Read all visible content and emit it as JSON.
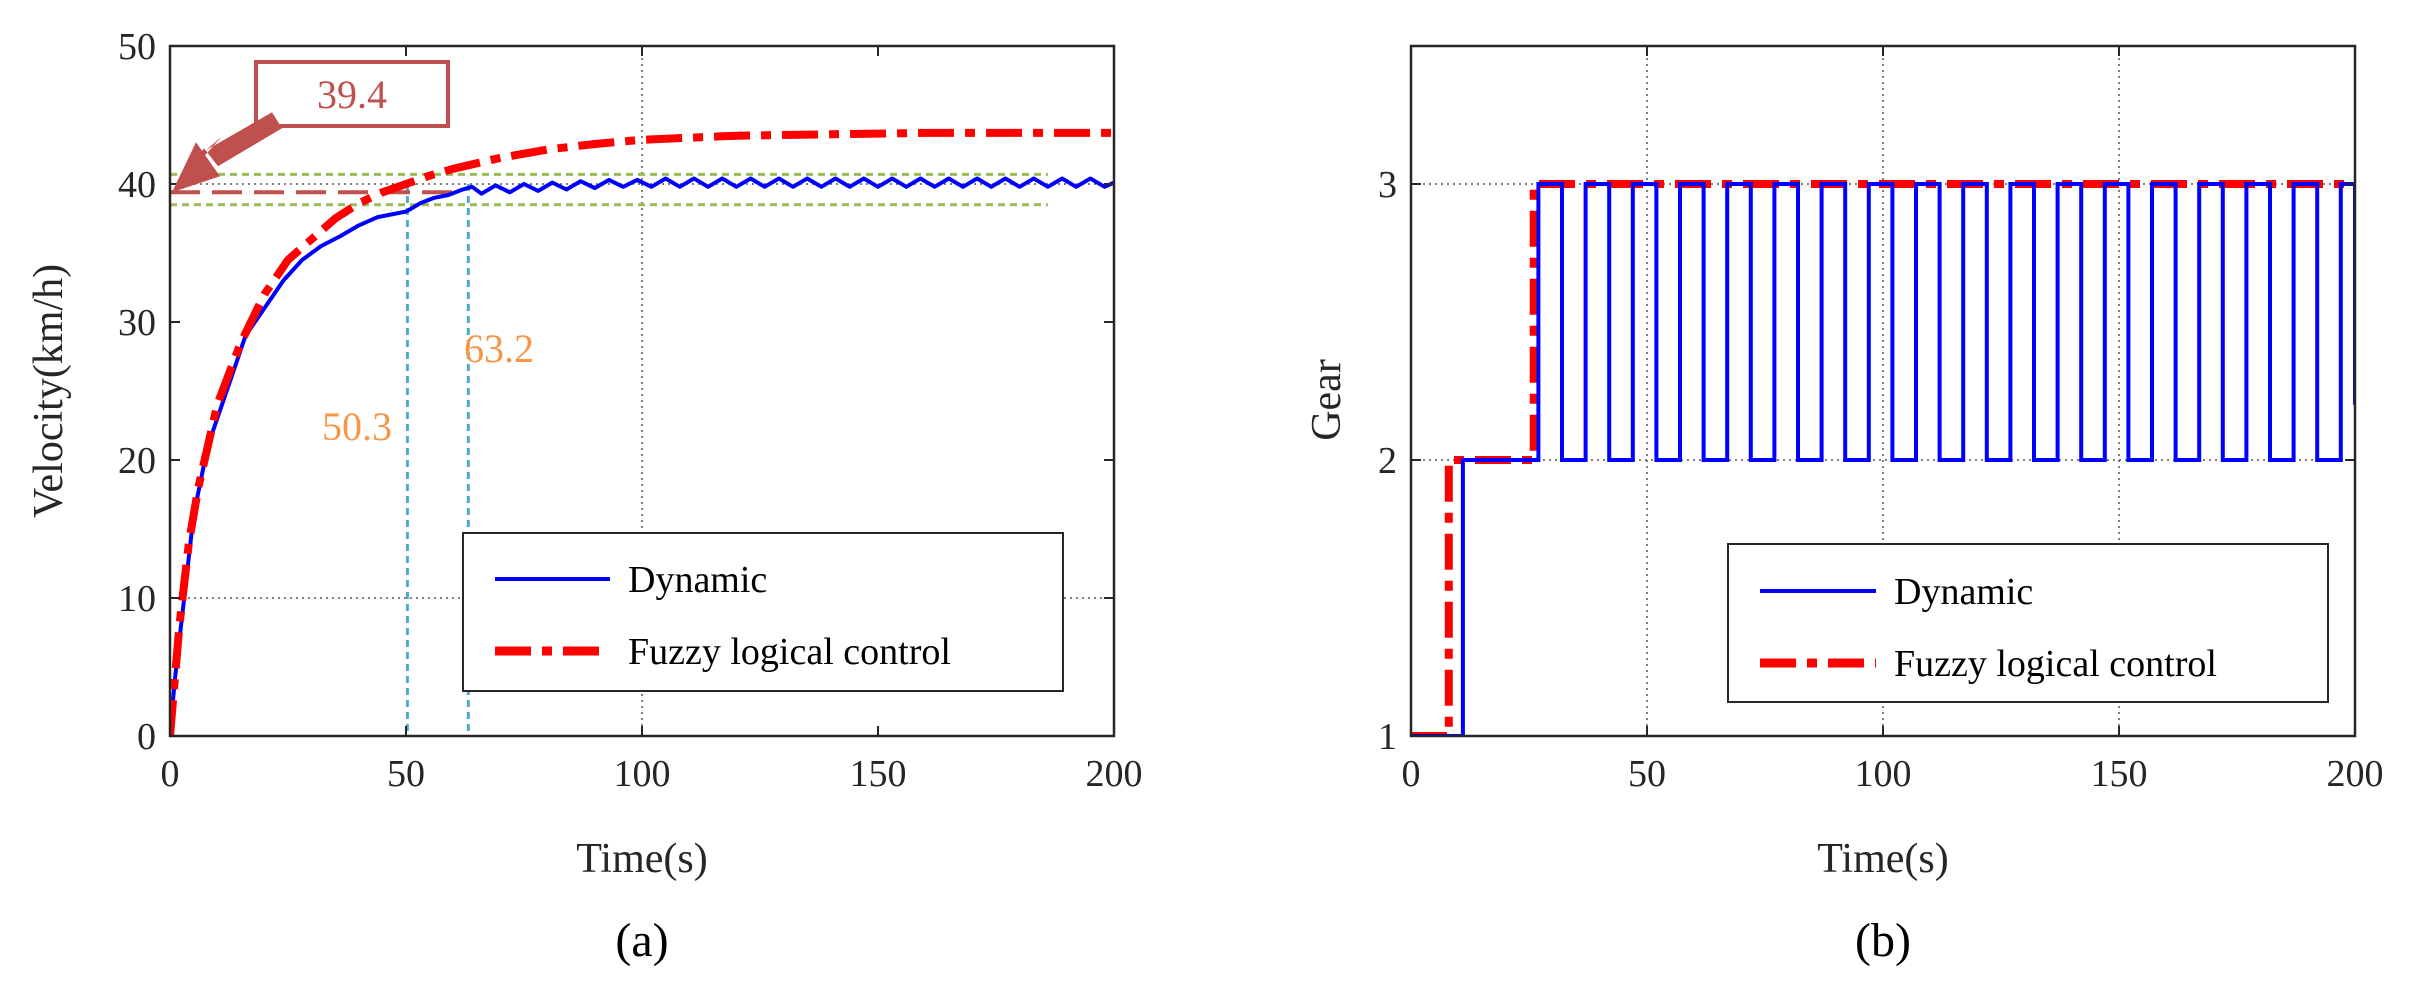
{
  "chart_data": [
    {
      "type": "line",
      "panel_label": "(a)",
      "xlabel": "Time(s)",
      "ylabel": "Velocity(km/h)",
      "xlim": [
        0,
        200
      ],
      "ylim": [
        0,
        50
      ],
      "xticks": [
        "0",
        "50",
        "100",
        "150",
        "200"
      ],
      "yticks": [
        "0",
        "10",
        "20",
        "30",
        "40",
        "50"
      ],
      "grid": "dotted, selected lines",
      "legend_position": "lower-right",
      "series": [
        {
          "name": "Dynamic",
          "color": "#0000ff",
          "style": "solid",
          "points": [
            [
              0,
              0
            ],
            [
              1,
              4
            ],
            [
              3,
              10
            ],
            [
              5,
              16
            ],
            [
              8,
              21
            ],
            [
              10,
              23
            ],
            [
              13,
              26
            ],
            [
              16,
              29
            ],
            [
              20,
              31
            ],
            [
              24,
              33
            ],
            [
              28,
              34.5
            ],
            [
              32,
              35.5
            ],
            [
              36,
              36.2
            ],
            [
              40,
              37
            ],
            [
              44,
              37.6
            ],
            [
              47,
              37.8
            ],
            [
              50,
              38
            ],
            [
              53,
              38.6
            ],
            [
              56,
              39
            ],
            [
              59,
              39.2
            ],
            [
              62,
              39.6
            ],
            [
              64,
              39.8
            ],
            [
              66,
              39.3
            ],
            [
              69,
              39.9
            ],
            [
              72,
              39.4
            ],
            [
              75,
              40.0
            ],
            [
              78,
              39.5
            ],
            [
              81,
              40.1
            ],
            [
              84,
              39.6
            ],
            [
              87,
              40.2
            ],
            [
              90,
              39.7
            ],
            [
              93,
              40.3
            ],
            [
              96,
              39.8
            ],
            [
              99,
              40.3
            ],
            [
              102,
              39.8
            ],
            [
              105,
              40.4
            ],
            [
              108,
              39.8
            ],
            [
              111,
              40.4
            ],
            [
              114,
              39.8
            ],
            [
              117,
              40.4
            ],
            [
              120,
              39.8
            ],
            [
              123,
              40.4
            ],
            [
              126,
              39.8
            ],
            [
              129,
              40.4
            ],
            [
              132,
              39.8
            ],
            [
              135,
              40.4
            ],
            [
              138,
              39.8
            ],
            [
              141,
              40.4
            ],
            [
              144,
              39.8
            ],
            [
              147,
              40.4
            ],
            [
              150,
              39.8
            ],
            [
              153,
              40.4
            ],
            [
              156,
              39.8
            ],
            [
              159,
              40.4
            ],
            [
              162,
              39.8
            ],
            [
              165,
              40.4
            ],
            [
              168,
              39.8
            ],
            [
              171,
              40.4
            ],
            [
              174,
              39.8
            ],
            [
              177,
              40.4
            ],
            [
              180,
              39.8
            ],
            [
              183,
              40.4
            ],
            [
              186,
              39.8
            ],
            [
              189,
              40.4
            ],
            [
              192,
              39.8
            ],
            [
              195,
              40.4
            ],
            [
              198,
              39.8
            ],
            [
              200,
              40.1
            ]
          ]
        },
        {
          "name": "Fuzzy logical control",
          "color": "#ff0000",
          "style": "dash-dot",
          "points": [
            [
              0,
              0
            ],
            [
              2,
              8
            ],
            [
              4,
              14
            ],
            [
              6,
              18
            ],
            [
              8,
              21
            ],
            [
              10,
              24
            ],
            [
              15,
              28.5
            ],
            [
              20,
              32
            ],
            [
              25,
              34.5
            ],
            [
              30,
              36
            ],
            [
              35,
              37.5
            ],
            [
              40,
              38.6
            ],
            [
              45,
              39.4
            ],
            [
              50,
              40.0
            ],
            [
              55,
              40.6
            ],
            [
              60,
              41.1
            ],
            [
              70,
              41.9
            ],
            [
              80,
              42.5
            ],
            [
              90,
              42.9
            ],
            [
              100,
              43.2
            ],
            [
              120,
              43.5
            ],
            [
              140,
              43.6
            ],
            [
              160,
              43.7
            ],
            [
              180,
              43.7
            ],
            [
              200,
              43.7
            ]
          ]
        }
      ],
      "annotations": {
        "callout_value": "39.4",
        "callout_color": "#c0504d",
        "callout_y": 39.4,
        "vline_labels": [
          "50.3",
          "63.2"
        ],
        "vline_x": [
          50.3,
          63.2
        ],
        "vline_color": "#4bacc6",
        "label_color": "#f79646",
        "band_color": "#9bbb59",
        "band_y": [
          38.5,
          40.7
        ]
      }
    },
    {
      "type": "line",
      "panel_label": "(b)",
      "xlabel": "Time(s)",
      "ylabel": "Gear",
      "xlim": [
        0,
        200
      ],
      "ylim": [
        1,
        3.5
      ],
      "xticks": [
        "0",
        "50",
        "100",
        "150",
        "200"
      ],
      "yticks": [
        "1",
        "2",
        "3"
      ],
      "grid": "dotted",
      "legend_position": "lower-right",
      "series": [
        {
          "name": "Dynamic",
          "color": "#0000ff",
          "style": "solid",
          "step_points": [
            [
              0,
              1
            ],
            [
              11,
              1
            ],
            [
              11,
              2
            ],
            [
              27,
              2
            ],
            [
              27,
              3
            ],
            [
              32,
              3
            ],
            [
              32,
              2
            ],
            [
              37,
              2
            ],
            [
              37,
              3
            ],
            [
              42,
              3
            ],
            [
              42,
              2
            ],
            [
              47,
              2
            ],
            [
              47,
              3
            ],
            [
              52,
              3
            ],
            [
              52,
              2
            ],
            [
              57,
              2
            ],
            [
              57,
              3
            ],
            [
              62,
              3
            ],
            [
              62,
              2
            ],
            [
              67,
              2
            ],
            [
              67,
              3
            ],
            [
              72,
              3
            ],
            [
              72,
              2
            ],
            [
              77,
              2
            ],
            [
              77,
              3
            ],
            [
              82,
              3
            ],
            [
              82,
              2
            ],
            [
              87,
              2
            ],
            [
              87,
              3
            ],
            [
              92,
              3
            ],
            [
              92,
              2
            ],
            [
              97,
              2
            ],
            [
              97,
              3
            ],
            [
              102,
              3
            ],
            [
              102,
              2
            ],
            [
              107,
              2
            ],
            [
              107,
              3
            ],
            [
              112,
              3
            ],
            [
              112,
              2
            ],
            [
              117,
              2
            ],
            [
              117,
              3
            ],
            [
              122,
              3
            ],
            [
              122,
              2
            ],
            [
              127,
              2
            ],
            [
              127,
              3
            ],
            [
              132,
              3
            ],
            [
              132,
              2
            ],
            [
              137,
              2
            ],
            [
              137,
              3
            ],
            [
              142,
              3
            ],
            [
              142,
              2
            ],
            [
              147,
              2
            ],
            [
              147,
              3
            ],
            [
              152,
              3
            ],
            [
              152,
              2
            ],
            [
              157,
              2
            ],
            [
              157,
              3
            ],
            [
              162,
              3
            ],
            [
              162,
              2
            ],
            [
              167,
              2
            ],
            [
              167,
              3
            ],
            [
              172,
              3
            ],
            [
              172,
              2
            ],
            [
              177,
              2
            ],
            [
              177,
              3
            ],
            [
              182,
              3
            ],
            [
              182,
              2
            ],
            [
              187,
              2
            ],
            [
              187,
              3
            ],
            [
              192,
              3
            ],
            [
              192,
              2
            ],
            [
              197,
              2
            ],
            [
              197,
              3
            ],
            [
              200,
              3
            ],
            [
              200,
              2.2
            ]
          ]
        },
        {
          "name": "Fuzzy logical control",
          "color": "#ff0000",
          "style": "dash-dot",
          "step_points": [
            [
              0,
              1
            ],
            [
              8,
              1
            ],
            [
              8,
              2
            ],
            [
              26,
              2
            ],
            [
              26,
              3
            ],
            [
              200,
              3
            ]
          ]
        }
      ]
    }
  ]
}
